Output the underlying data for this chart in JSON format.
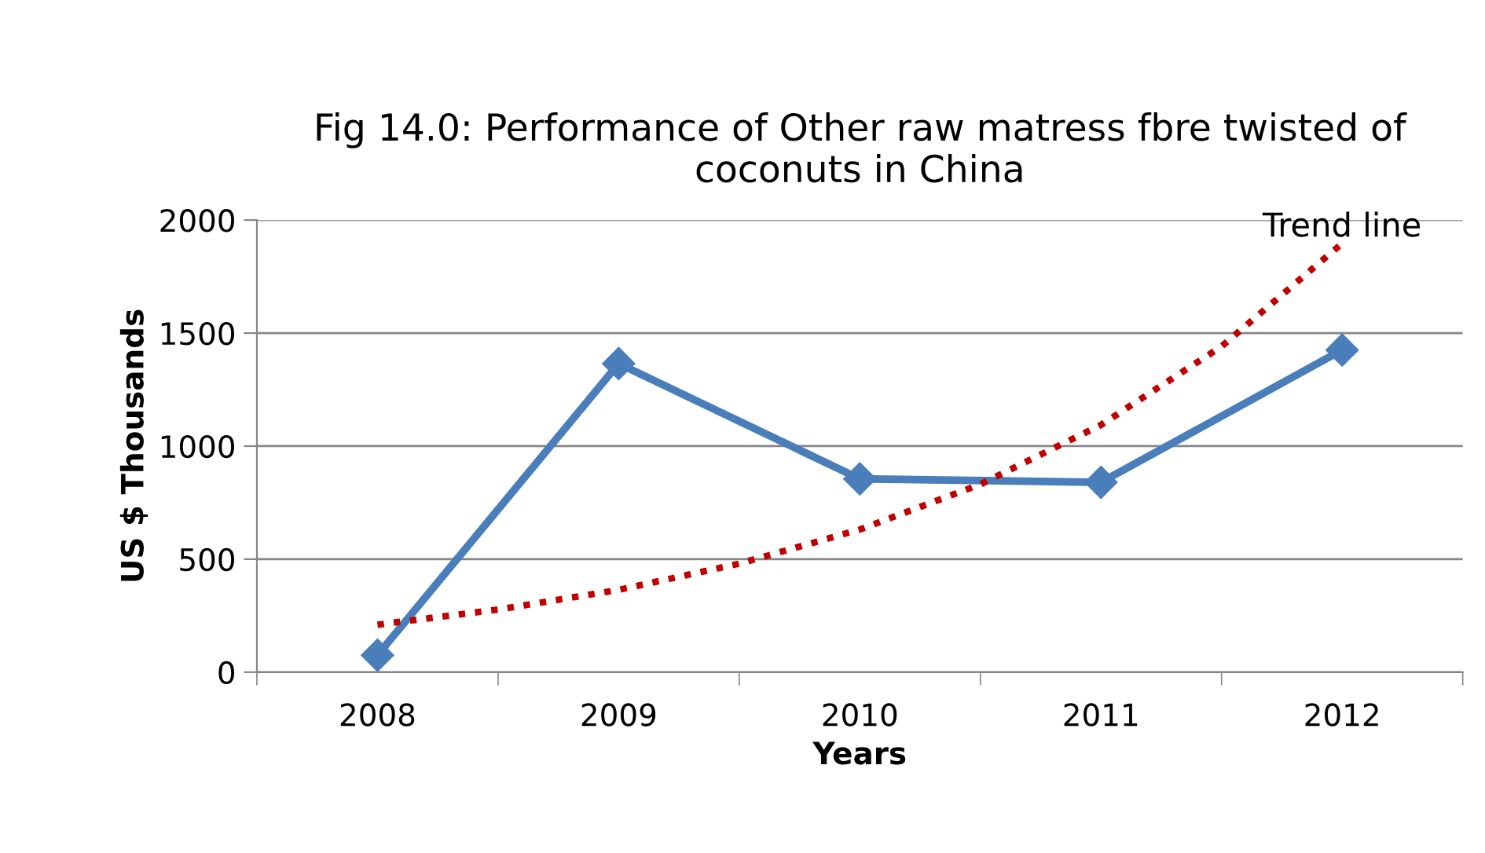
{
  "chart_data": {
    "type": "line",
    "title": "Fig 14.0: Performance of Other raw matress fbre twisted of coconuts in China",
    "xlabel": "Years",
    "ylabel": "US $ Thousands",
    "x": [
      2008,
      2009,
      2010,
      2011,
      2012
    ],
    "series": [
      {
        "color": "#4a7ebb",
        "values": [
          75,
          1365,
          855,
          840,
          1425
        ],
        "marker": "diamond",
        "line_style": "solid"
      },
      {
        "color": "#c00000",
        "x": [
          2008,
          2008.5,
          2009,
          2009.5,
          2010,
          2010.5,
          2011,
          2011.5,
          2012
        ],
        "values": [
          210,
          277,
          364,
          480,
          631,
          831,
          1094,
          1441,
          1897
        ],
        "marker": "none",
        "line_style": "dotted"
      }
    ],
    "annotations": [
      {
        "text": "Trend line",
        "x": 2012,
        "y": 1897
      }
    ],
    "xlim": [
      2007.5,
      2012.5
    ],
    "xticks": [
      {
        "value": 2007.5,
        "label": null
      },
      2008,
      {
        "value": 2008.5,
        "label": null
      },
      2009,
      {
        "value": 2009.5,
        "label": null
      },
      2010,
      {
        "value": 2010.5,
        "label": null
      },
      2011,
      {
        "value": 2011.5,
        "label": null
      },
      2012,
      {
        "value": 2012.5,
        "label": null
      }
    ],
    "ylim": [
      0,
      2000
    ],
    "yticks": [
      0,
      500,
      1000,
      1500,
      2000
    ],
    "grid": "y",
    "legend": false
  }
}
